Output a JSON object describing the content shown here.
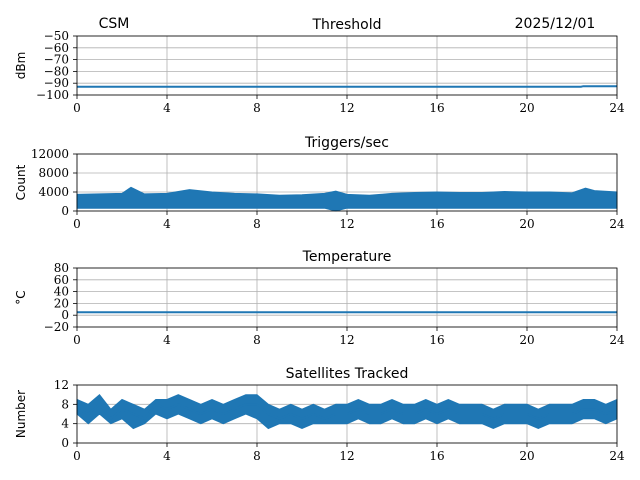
{
  "header": {
    "left": "CSM",
    "right": "2025/12/01"
  },
  "colors": {
    "series": "#1f77b4",
    "grid": "#b0b0b0"
  },
  "chart_data": [
    {
      "type": "line",
      "title": "Threshold",
      "ylabel": "dBm",
      "xlim": [
        0,
        24
      ],
      "ylim": [
        -100,
        -50
      ],
      "xticks": [
        0,
        4,
        8,
        12,
        16,
        20,
        24
      ],
      "yticks": [
        -50,
        -60,
        -70,
        -80,
        -90,
        -100
      ],
      "ytick_labels": [
        "−50",
        "−60",
        "−70",
        "−80",
        "−90",
        "−100"
      ],
      "grid": true,
      "series": [
        {
          "x": [
            0,
            22.4,
            22.5,
            24
          ],
          "y": [
            -93,
            -93,
            -92.5,
            -92.5
          ]
        }
      ]
    },
    {
      "type": "area",
      "title": "Triggers/sec",
      "ylabel": "Count",
      "xlim": [
        0,
        24
      ],
      "ylim": [
        0,
        12000
      ],
      "xticks": [
        0,
        4,
        8,
        12,
        16,
        20,
        24
      ],
      "yticks": [
        0,
        4000,
        8000,
        12000
      ],
      "ytick_labels": [
        "0",
        "4000",
        "8000",
        "12000"
      ],
      "grid": true,
      "series": [
        {
          "x": [
            0,
            1,
            2,
            2.4,
            3,
            4,
            5,
            6,
            7,
            8,
            9,
            10,
            11,
            11.5,
            12,
            13,
            14,
            15,
            16,
            17,
            18,
            19,
            20,
            21,
            22,
            22.6,
            23,
            24
          ],
          "upper": [
            3500,
            3600,
            3700,
            5000,
            3600,
            3700,
            4500,
            4000,
            3700,
            3600,
            3300,
            3400,
            3700,
            4200,
            3500,
            3300,
            3700,
            3900,
            4000,
            3900,
            3900,
            4100,
            4000,
            4000,
            3800,
            4800,
            4300,
            4000
          ],
          "lower": [
            600,
            600,
            600,
            600,
            600,
            600,
            600,
            600,
            600,
            600,
            600,
            600,
            600,
            0,
            600,
            600,
            600,
            600,
            600,
            600,
            600,
            600,
            600,
            600,
            600,
            600,
            600,
            600
          ]
        }
      ]
    },
    {
      "type": "line",
      "title": "Temperature",
      "ylabel": "°C",
      "xlim": [
        0,
        24
      ],
      "ylim": [
        -20,
        80
      ],
      "xticks": [
        0,
        4,
        8,
        12,
        16,
        20,
        24
      ],
      "yticks": [
        80,
        60,
        40,
        20,
        0,
        -20
      ],
      "ytick_labels": [
        "80",
        "60",
        "40",
        "20",
        "0",
        "−20"
      ],
      "grid": true,
      "series": [
        {
          "x": [
            0,
            24
          ],
          "y": [
            5,
            5
          ]
        }
      ]
    },
    {
      "type": "line",
      "title": "Satellites Tracked",
      "ylabel": "Number",
      "xlim": [
        0,
        24
      ],
      "ylim": [
        0,
        12
      ],
      "xticks": [
        0,
        4,
        8,
        12,
        16,
        20,
        24
      ],
      "yticks": [
        12,
        8,
        4,
        0
      ],
      "ytick_labels": [
        "12",
        "8",
        "4",
        "0"
      ],
      "grid": true,
      "series": [
        {
          "x": [
            0,
            0.5,
            1,
            1.5,
            2,
            2.5,
            3,
            3.5,
            4,
            4.5,
            5,
            5.5,
            6,
            6.5,
            7,
            7.5,
            8,
            8.5,
            9,
            9.5,
            10,
            10.5,
            11,
            11.5,
            12,
            12.5,
            13,
            13.5,
            14,
            14.5,
            15,
            15.5,
            16,
            16.5,
            17,
            17.5,
            18,
            18.5,
            19,
            19.5,
            20,
            20.5,
            21,
            21.5,
            22,
            22.5,
            23,
            23.5,
            24
          ],
          "y": [
            7,
            6,
            8,
            5,
            7,
            6,
            5,
            8,
            7,
            8,
            7,
            6,
            7,
            6,
            7,
            8,
            8,
            6,
            5,
            6,
            5,
            6,
            5,
            6,
            6,
            7,
            6,
            6,
            7,
            6,
            6,
            7,
            6,
            7,
            6,
            6,
            6,
            5,
            6,
            6,
            6,
            5,
            6,
            6,
            6,
            7,
            7,
            6,
            7
          ],
          "lower": [
            6,
            4,
            6,
            4,
            5,
            3,
            4,
            6,
            5,
            6,
            5,
            4,
            5,
            4,
            5,
            6,
            5,
            3,
            4,
            4,
            3,
            4,
            4,
            4,
            4,
            5,
            4,
            4,
            5,
            4,
            4,
            5,
            4,
            5,
            4,
            4,
            4,
            3,
            4,
            4,
            4,
            3,
            4,
            4,
            4,
            5,
            5,
            4,
            5
          ],
          "upper": [
            9,
            8,
            10,
            7,
            9,
            8,
            7,
            9,
            9,
            10,
            9,
            8,
            9,
            8,
            9,
            10,
            10,
            8,
            7,
            8,
            7,
            8,
            7,
            8,
            8,
            9,
            8,
            8,
            9,
            8,
            8,
            9,
            8,
            9,
            8,
            8,
            8,
            7,
            8,
            8,
            8,
            7,
            8,
            8,
            8,
            9,
            9,
            8,
            9
          ]
        }
      ]
    }
  ]
}
